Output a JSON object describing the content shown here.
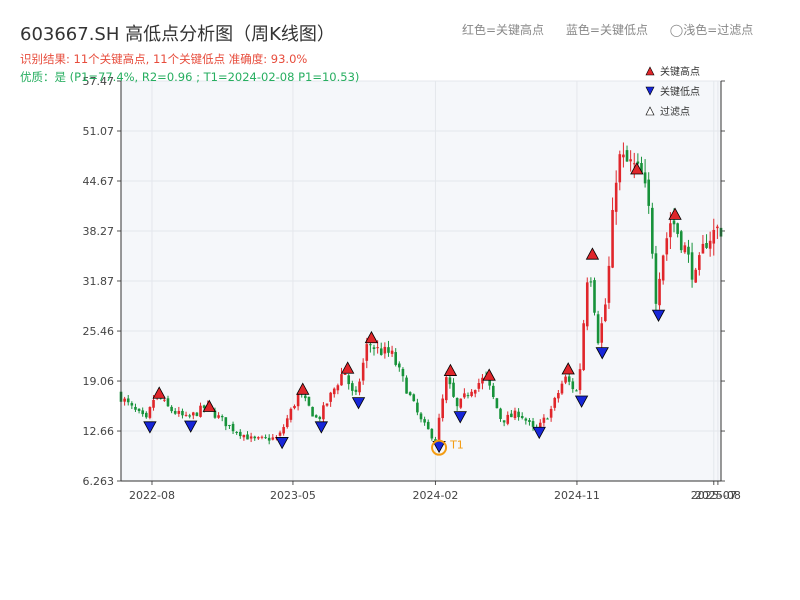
{
  "header": {
    "title": "603667.SH 高低点分析图（周K线图）",
    "legend_red": "红色=关键高点",
    "legend_blue": "蓝色=关键低点",
    "legend_light": "◯浅色=过滤点",
    "result_text": "识别结果: 11个关键高点, 11个关键低点   准确度: 93.0%",
    "quality_text": "优质：是  (P1=77.4%, R2=0.96 ; T1=2024-02-08 P1=10.53)"
  },
  "colors": {
    "up": "#e0262b",
    "down": "#17923a",
    "high_marker": "#e0262b",
    "low_marker": "#1726d8",
    "t1_marker": "#f39c12",
    "plot_bg": "#f5f7fa",
    "grid": "#e4e7ec"
  },
  "chart_data": {
    "type": "candlestick",
    "ylim": [
      6.263,
      57.47
    ],
    "y_ticks": [
      "6.263",
      "12.66",
      "19.06",
      "25.46",
      "31.87",
      "38.27",
      "44.67",
      "51.07",
      "57.47"
    ],
    "x_start": "2022-06-02",
    "x_end": "2025-08-07",
    "x_ticks": [
      {
        "date": "2022-08-01",
        "label": "2022-08"
      },
      {
        "date": "2023-05-01",
        "label": "2023-05"
      },
      {
        "date": "2024-02-01",
        "label": "2024-02"
      },
      {
        "date": "2024-11-01",
        "label": "2024-11"
      },
      {
        "date": "2025-07-24",
        "label": "2025-07"
      },
      {
        "date": "2025-08-01",
        "label": "2025-08"
      }
    ],
    "price_path": [
      [
        "2022-06-02",
        17.5
      ],
      [
        "2022-07-01",
        15.5
      ],
      [
        "2022-07-28",
        14.0
      ],
      [
        "2022-08-15",
        17.5
      ],
      [
        "2022-09-10",
        15.5
      ],
      [
        "2022-10-15",
        14.2
      ],
      [
        "2022-11-20",
        15.8
      ],
      [
        "2023-01-10",
        13.0
      ],
      [
        "2023-02-20",
        11.5
      ],
      [
        "2023-04-10",
        11.8
      ],
      [
        "2023-05-20",
        17.5
      ],
      [
        "2023-06-25",
        14.0
      ],
      [
        "2023-08-15",
        20.5
      ],
      [
        "2023-09-05",
        16.5
      ],
      [
        "2023-09-30",
        24.0
      ],
      [
        "2023-10-20",
        23.0
      ],
      [
        "2023-11-15",
        22.5
      ],
      [
        "2024-01-10",
        14.0
      ],
      [
        "2024-02-08",
        11.5
      ],
      [
        "2024-03-01",
        19.5
      ],
      [
        "2024-03-20",
        15.5
      ],
      [
        "2024-04-15",
        18.0
      ],
      [
        "2024-05-15",
        19.5
      ],
      [
        "2024-06-15",
        14.0
      ],
      [
        "2024-07-20",
        15.0
      ],
      [
        "2024-08-20",
        12.5
      ],
      [
        "2024-09-20",
        15.5
      ],
      [
        "2024-10-15",
        19.5
      ],
      [
        "2024-11-10",
        17.5
      ],
      [
        "2024-12-01",
        35.0
      ],
      [
        "2024-12-20",
        24.0
      ],
      [
        "2025-01-05",
        30.0
      ],
      [
        "2025-01-25",
        47.5
      ],
      [
        "2025-02-25",
        46.5
      ],
      [
        "2025-03-15",
        45.0
      ],
      [
        "2025-04-01",
        39.0
      ],
      [
        "2025-04-08",
        29.0
      ],
      [
        "2025-04-20",
        34.5
      ],
      [
        "2025-05-10",
        40.0
      ],
      [
        "2025-06-05",
        36.0
      ],
      [
        "2025-06-25",
        32.0
      ],
      [
        "2025-07-15",
        37.0
      ],
      [
        "2025-08-07",
        38.5
      ]
    ],
    "key_highs": [
      {
        "date": "2022-08-15",
        "price": 17.5
      },
      {
        "date": "2022-11-20",
        "price": 15.8
      },
      {
        "date": "2023-05-20",
        "price": 18.0
      },
      {
        "date": "2023-08-15",
        "price": 20.7
      },
      {
        "date": "2023-09-30",
        "price": 24.6
      },
      {
        "date": "2024-03-01",
        "price": 20.4
      },
      {
        "date": "2024-05-15",
        "price": 19.8
      },
      {
        "date": "2024-10-15",
        "price": 20.6
      },
      {
        "date": "2024-12-01",
        "price": 35.3
      },
      {
        "date": "2025-02-25",
        "price": 46.2
      },
      {
        "date": "2025-05-10",
        "price": 40.4
      }
    ],
    "key_lows": [
      {
        "date": "2022-07-28",
        "price": 13.2
      },
      {
        "date": "2022-10-15",
        "price": 13.3
      },
      {
        "date": "2023-04-10",
        "price": 11.2
      },
      {
        "date": "2023-06-25",
        "price": 13.2
      },
      {
        "date": "2023-09-05",
        "price": 16.3
      },
      {
        "date": "2024-02-08",
        "price": 10.7
      },
      {
        "date": "2024-03-20",
        "price": 14.5
      },
      {
        "date": "2024-08-20",
        "price": 12.5
      },
      {
        "date": "2024-11-10",
        "price": 16.5
      },
      {
        "date": "2024-12-20",
        "price": 22.7
      },
      {
        "date": "2025-04-08",
        "price": 27.5
      }
    ],
    "t1_point": {
      "label": "T1",
      "date": "2024-02-08",
      "price": 10.53
    },
    "legend": [
      "关键高点",
      "关键低点",
      "过滤点"
    ],
    "legend_position": "top-right"
  }
}
